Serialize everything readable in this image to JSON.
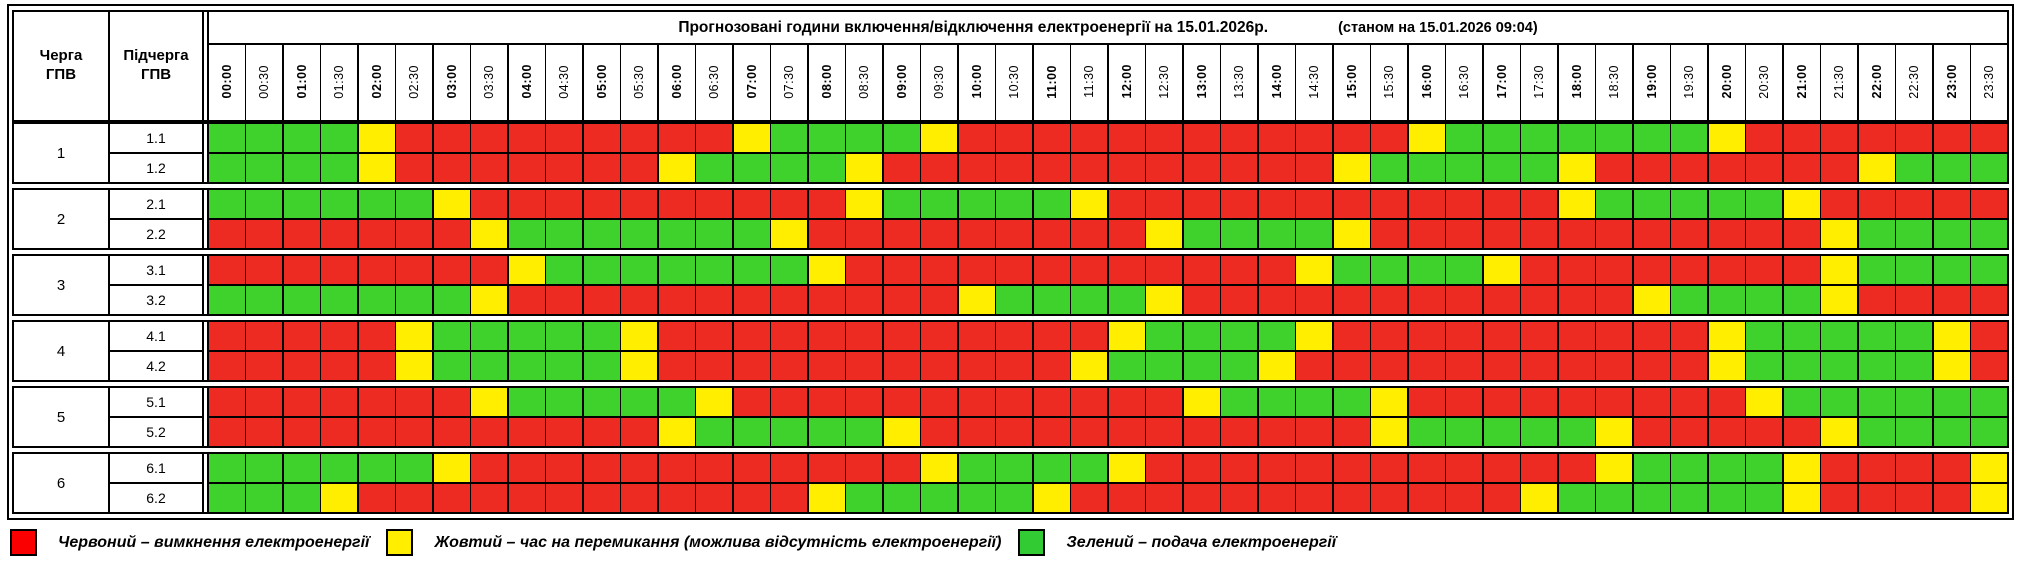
{
  "header": {
    "title": "Прогнозовані години включення/відключення електроенергії на 15.01.2026р.",
    "status": "(станом на 15.01.2026 09:04)",
    "col1": "Черга\nГПВ",
    "col2": "Підчерга\nГПВ",
    "times": [
      "00:00",
      "00:30",
      "01:00",
      "01:30",
      "02:00",
      "02:30",
      "03:00",
      "03:30",
      "04:00",
      "04:30",
      "05:00",
      "05:30",
      "06:00",
      "06:30",
      "07:00",
      "07:30",
      "08:00",
      "08:30",
      "09:00",
      "09:30",
      "10:00",
      "10:30",
      "11:00",
      "11:30",
      "12:00",
      "12:30",
      "13:00",
      "13:30",
      "14:00",
      "14:30",
      "15:00",
      "15:30",
      "16:00",
      "16:30",
      "17:00",
      "17:30",
      "18:00",
      "18:30",
      "19:00",
      "19:30",
      "20:00",
      "20:30",
      "21:00",
      "21:30",
      "22:00",
      "22:30",
      "23:00",
      "23:30"
    ]
  },
  "colors": {
    "R": "#ee2b23",
    "Y": "#ffee00",
    "G": "#3fd22d"
  },
  "queues": [
    {
      "queue": "1",
      "rows": [
        {
          "label": "1.1",
          "cells": "GGGGYRRRRRRRRRYGGGGYRRRRRRRRRRRRYGGGGGGGYRRRRRRR"
        },
        {
          "label": "1.2",
          "cells": "GGGGYRRRRRRRYGGGGYRRRRRRRRRRRRYGGGGGYRRRRRRRYGGG"
        }
      ]
    },
    {
      "queue": "2",
      "rows": [
        {
          "label": "2.1",
          "cells": "GGGGGGYRRRRRRRRRRYGGGGGYRRRRRRRRRRRRYGGGGGYRRRRR"
        },
        {
          "label": "2.2",
          "cells": "RRRRRRRYGGGGGGGYRRRRRRRRRYGGGGYRRRRRRRRRRRRYGGGG"
        }
      ]
    },
    {
      "queue": "3",
      "rows": [
        {
          "label": "3.1",
          "cells": "RRRRRRRRYGGGGGGGYRRRRRRRRRRRRYGGGGYRRRRRRRRYGGGG"
        },
        {
          "label": "3.2",
          "cells": "GGGGGGGYRRRRRRRRRRRRYGGGGYRRRRRRRRRRRRYGGGGYRRRR"
        }
      ]
    },
    {
      "queue": "4",
      "rows": [
        {
          "label": "4.1",
          "cells": "RRRRRYGGGGGYRRRRRRRRRRRRYGGGGYRRRRRRRRRRYGGGGGYR"
        },
        {
          "label": "4.2",
          "cells": "RRRRRYGGGGGYRRRRRRRRRRRYGGGGYRRRRRRRRRRRYGGGGGYR"
        }
      ]
    },
    {
      "queue": "5",
      "rows": [
        {
          "label": "5.1",
          "cells": "RRRRRRRYGGGGGYRRRRRRRRRRRRYGGGGYRRRRRRRRRYGGGGGG"
        },
        {
          "label": "5.2",
          "cells": "RRRRRRRRRRRRYGGGGGYRRRRRRRRRRRRYGGGGGYRRRRRYGGGG"
        }
      ]
    },
    {
      "queue": "6",
      "rows": [
        {
          "label": "6.1",
          "cells": "GGGGGGYRRRRRRRRRRRRYGGGGYRRRRRRRRRRRRYGGGGYRRRRY"
        },
        {
          "label": "6.2",
          "cells": "GGGYRRRRRRRRRRRRYGGGGGYRRRRRRRRRRRRYGGGGGGYRRRRY"
        }
      ]
    }
  ],
  "legend": [
    {
      "name": "red",
      "color": "#fb0000",
      "label": "Червоний – вимкнення електроенергії"
    },
    {
      "name": "yellow",
      "color": "#ffee00",
      "label": "Жовтий – час на перемикання (можлива відсутність електроенергії)"
    },
    {
      "name": "green",
      "color": "#33cb33",
      "label": "Зелений – подача електроенергії"
    }
  ]
}
